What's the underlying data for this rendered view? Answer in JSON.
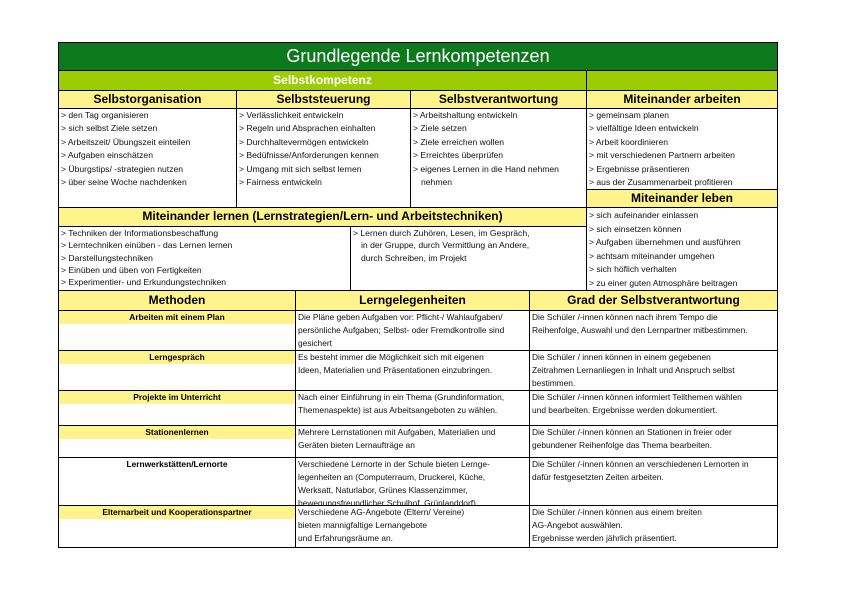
{
  "title": "Grundlegende Lernkompetenzen",
  "selbstkompetenz": "Selbstkompetenz",
  "columns": [
    {
      "header": "Selbstorganisation",
      "items": [
        "> den Tag organisieren",
        "> sich selbst Ziele setzen",
        "> Arbeitszeit/ Übungszeit einteilen",
        "> Aufgaben einschätzen",
        "> Üburgstips/ -strategien nutzen",
        "> über seine Woche nachdenken"
      ]
    },
    {
      "header": "Selbststeuerung",
      "items": [
        "> Verlässlichkeit entwickeln",
        "> Regeln und Absprachen einhalten",
        "> Durchhaltevermögen entwickeln",
        "> Bedüfnisse/Anforderungen kennen",
        "> Umgang mit sich selbst lernen",
        "> Fairness entwickeln"
      ]
    },
    {
      "header": "Selbstverantwortung",
      "items": [
        "> Arbeitshaltung entwickeln",
        "> Ziele setzen",
        "> Ziele erreichen wollen",
        "> Erreichtes überprüfen",
        "> eigenes Lernen in die Hand nehmen",
        "nehmen"
      ]
    },
    {
      "header": "Miteinander arbeiten",
      "items": [
        "> gemeinsam planen",
        "> vielfältige Ideen entwickeln",
        "> Arbeit koordinieren",
        "> mit verschiedenen Partnern arbeiten",
        "> Ergebnisse präsentieren",
        "> aus der Zusammenarbeit profitieren"
      ]
    }
  ],
  "miteinander_leben": {
    "header": "Miteinander leben",
    "items": [
      "> sich aufeinander einlassen",
      "> sich einsetzen können",
      "> Aufgaben übernehmen und ausführen",
      "> achtsam miteinander umgehen",
      "> sich höflich verhalten",
      "> zu einer guten Atmosphäre beitragen"
    ]
  },
  "miteinander_lernen": {
    "header": "Miteinander lernen (Lernstrategien/Lern- und Arbeitstechniken)",
    "left": [
      "> Techniken der Informationsbeschaffung",
      "> Lerntechniken einüben - das Lernen lernen",
      "> Darstellungstechniken",
      "> Einüben und üben von Fertigkeiten",
      "> Experimentier- und Erkundungstechniken"
    ],
    "right": [
      "> Lernen durch Zuhören, Lesen, im Gespräch,",
      "in der Gruppe, durch Vermittlung an Andere,",
      "durch Schreiben, im Projekt"
    ]
  },
  "methods_table": {
    "headers": [
      "Methoden",
      "Lerngelegenheiten",
      "Grad der Selbstverantwortung"
    ],
    "rows": [
      {
        "method": "Arbeiten mit einem Plan",
        "chance": [
          "Die Pläne geben Aufgaben vor: Pflicht-/ Wahlaufgaben/",
          "persönliche Aufgaben; Selbst- oder Fremdkontrolle sind",
          "gesichert"
        ],
        "degree": [
          "Die Schüler /-innen können nach ihrem Tempo die",
          "Reihenfolge, Auswahl und den Lernpartner mitbestimmen."
        ]
      },
      {
        "method": "Lerngespräch",
        "chance": [
          "Es besteht immer die Möglichkeit sich mit eigenen",
          "Ideen, Materialien und Präsentationen einzubringen."
        ],
        "degree": [
          "Die Schüler / innen können in einem gegebenen",
          "Zeitrahmen Lernanliegen in Inhalt und Anspruch selbst",
          "bestimmen."
        ]
      },
      {
        "method": "Projekte im Unterricht",
        "chance": [
          "Nach einer Einführung in ein Thema (Grundinformation,",
          "Themenaspekte) ist aus Arbeitsangeboten zu wählen."
        ],
        "degree": [
          "Die Schüler /-innen können informiert Teilthemen wählen",
          "und bearbeiten. Ergebnisse werden dokumentiert."
        ]
      },
      {
        "method": "Stationenlernen",
        "chance": [
          "Mehrere Lernstationen mit Aufgaben, Materialien und",
          "Geräten bieten Lernaufträge an"
        ],
        "degree": [
          "Die Schüler /-innen können an Stationen in freier oder",
          "gebundener Reihenfolge das Thema bearbeiten."
        ]
      },
      {
        "method": "Lernwerkstätten/Lernorte",
        "chance": [
          "Verschiedene Lernorte in der Schule bieten Lernge-",
          "legenheiten an (Computerraum, Druckerei, Küche,",
          "Werksatt, Naturlabor, Grünes Klassenzimmer,",
          "bewegungsfreundlicher Schulhof, Grünlanddorf)"
        ],
        "degree": [
          "Die Schüler /-innen können an verschiedenen Lernorten in",
          "dafür festgesetzten Zeiten arbeiten."
        ]
      },
      {
        "method": "Elternarbeit und Kooperationspartner",
        "chance": [
          "Verschiedene AG-Angebote (Eltern/ Vereine)",
          "bieten mannigfaltige Lernangebote",
          "und Erfahrungsräume an."
        ],
        "degree": [
          "Die Schüler /-innen können aus einem breiten",
          "AG-Angebot auswählen.",
          "Ergebnisse werden jährlich präsentiert."
        ]
      }
    ]
  },
  "colors": {
    "title_bg": "#0c7a1c",
    "section_bg": "#9bcc04",
    "header_bg": "#fff38c"
  }
}
